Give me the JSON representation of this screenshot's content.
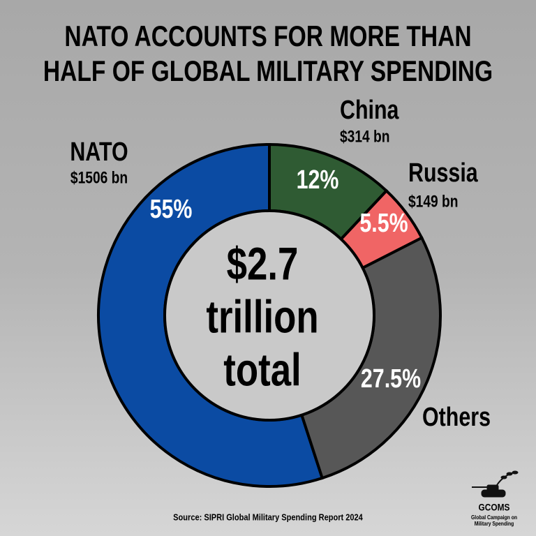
{
  "chart_data": {
    "type": "donut",
    "title": [
      "NATO ACCOUNTS FOR MORE THAN",
      "HALF OF GLOBAL MILITARY SPENDING"
    ],
    "categories": [
      "NATO",
      "China",
      "Russia",
      "Others"
    ],
    "amount_labels": [
      "$1506 bn",
      "$314 bn",
      "$149 bn",
      null
    ],
    "values": [
      55,
      12,
      5.5,
      27.5
    ],
    "value_labels": [
      "55%",
      "12%",
      "5.5%",
      "27.5%"
    ],
    "colors": [
      "#0b4ba3",
      "#2f5b33",
      "#f06565",
      "#575757"
    ],
    "center_label": [
      "$2.7",
      "trillion",
      "total"
    ],
    "source": "Source: SIPRI Global Military Spending Report 2024",
    "logo": {
      "name": "GCOMS",
      "subtitle": [
        "Global Campaign on",
        "Military Spending"
      ]
    }
  }
}
